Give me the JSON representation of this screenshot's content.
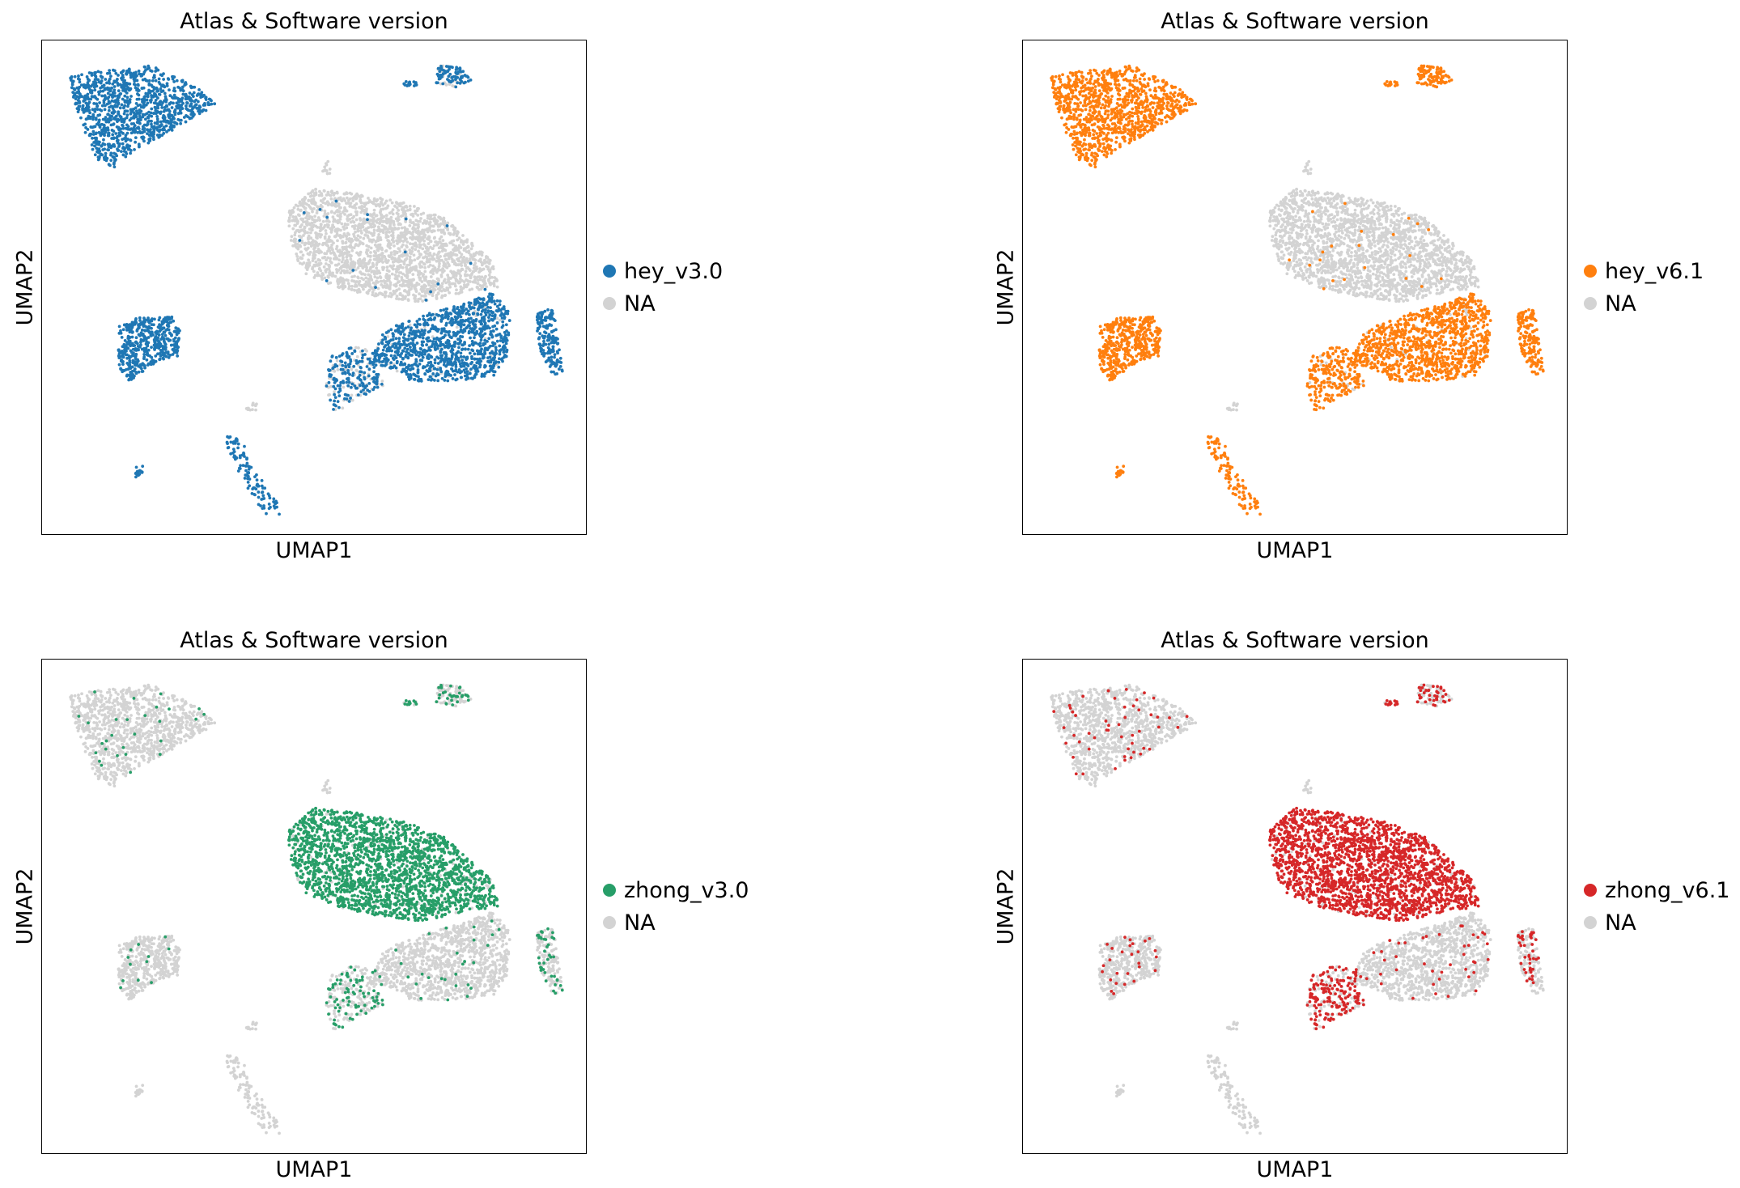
{
  "colors": {
    "na": "#d3d3d3",
    "blue": "#1f77b4",
    "orange": "#ff7f0e",
    "green": "#279e68",
    "red": "#d62728"
  },
  "chart_data": [
    {
      "type": "scatter",
      "title": "Atlas & Software version",
      "xlabel": "UMAP1",
      "ylabel": "UMAP2",
      "highlight": "hey_v3.0",
      "color": "#1f77b4",
      "legend": [
        {
          "label": "hey_v3.0",
          "color": "#1f77b4"
        },
        {
          "label": "NA",
          "color": "#d3d3d3"
        }
      ],
      "legend_position": "right",
      "grid": false,
      "fractions": {
        "top_left": 1,
        "top_right": 0.7,
        "small_top": 1,
        "center": 0.01,
        "right_center": 0.95,
        "far_right": 1,
        "left_mid": 1,
        "bottom_left": 1,
        "bottom_center": 1,
        "lower_mid": 0.7
      }
    },
    {
      "type": "scatter",
      "title": "Atlas & Software version",
      "xlabel": "UMAP1",
      "ylabel": "UMAP2",
      "highlight": "hey_v6.1",
      "color": "#ff7f0e",
      "legend": [
        {
          "label": "hey_v6.1",
          "color": "#ff7f0e"
        },
        {
          "label": "NA",
          "color": "#d3d3d3"
        }
      ],
      "legend_position": "right",
      "grid": false,
      "fractions": {
        "top_left": 1,
        "top_right": 1,
        "small_top": 1,
        "center": 0.01,
        "right_center": 0.95,
        "far_right": 1,
        "left_mid": 1,
        "bottom_left": 1,
        "bottom_center": 1,
        "lower_mid": 0.9
      }
    },
    {
      "type": "scatter",
      "title": "Atlas & Software version",
      "xlabel": "UMAP1",
      "ylabel": "UMAP2",
      "highlight": "zhong_v3.0",
      "color": "#279e68",
      "legend": [
        {
          "label": "zhong_v3.0",
          "color": "#279e68"
        },
        {
          "label": "NA",
          "color": "#d3d3d3"
        }
      ],
      "legend_position": "right",
      "grid": false,
      "fractions": {
        "top_left": 0.02,
        "top_right": 0.3,
        "small_top": 0.6,
        "center": 0.92,
        "right_center": 0.03,
        "far_right": 0.25,
        "left_mid": 0.02,
        "bottom_left": 0,
        "bottom_center": 0,
        "lower_mid": 0.35
      }
    },
    {
      "type": "scatter",
      "title": "Atlas & Software version",
      "xlabel": "UMAP1",
      "ylabel": "UMAP2",
      "highlight": "zhong_v6.1",
      "color": "#d62728",
      "legend": [
        {
          "label": "zhong_v6.1",
          "color": "#d62728"
        },
        {
          "label": "NA",
          "color": "#d3d3d3"
        }
      ],
      "legend_position": "right",
      "grid": false,
      "fractions": {
        "top_left": 0.04,
        "top_right": 0.4,
        "small_top": 0.8,
        "center": 0.95,
        "right_center": 0.04,
        "far_right": 0.3,
        "left_mid": 0.05,
        "bottom_left": 0,
        "bottom_center": 0,
        "lower_mid": 0.6
      }
    }
  ]
}
